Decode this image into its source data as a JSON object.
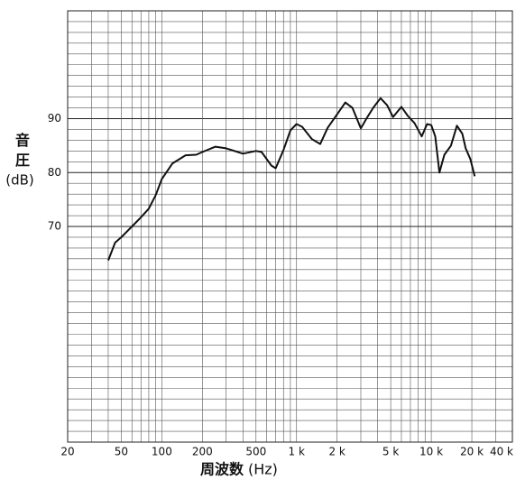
{
  "chart_data": {
    "type": "line",
    "ylabel": "音圧",
    "ylabel_unit": "(dB)",
    "xlabel": "周波数",
    "xlabel_unit": "(Hz)",
    "log_x": true,
    "grid": true,
    "color": "#111111",
    "xlim": [
      20,
      40000
    ],
    "ylim": [
      30,
      110
    ],
    "xticks": [
      20,
      50,
      100,
      200,
      500,
      {
        "value": 1000,
        "label": "1 k"
      },
      {
        "value": 2000,
        "label": "2 k"
      },
      {
        "value": 5000,
        "label": "5 k"
      },
      {
        "value": 10000,
        "label": "10 k"
      },
      {
        "value": 20000,
        "label": "20 k"
      },
      {
        "value": 40000,
        "label": "40 k"
      }
    ],
    "xminor": [
      30,
      40,
      60,
      70,
      80,
      90,
      300,
      400,
      600,
      700,
      800,
      900,
      3000,
      4000,
      6000,
      7000,
      8000,
      9000,
      30000
    ],
    "yticks": [
      70,
      80,
      90
    ],
    "yminor": [
      32,
      34,
      36,
      38,
      40,
      42,
      44,
      46,
      48,
      50,
      52,
      54,
      56,
      58,
      60,
      62,
      64,
      66,
      68,
      72,
      74,
      76,
      78,
      82,
      84,
      86,
      88,
      92,
      94,
      96,
      98,
      100,
      102,
      104,
      106,
      108
    ],
    "x": [
      40,
      45,
      50,
      60,
      70,
      80,
      90,
      100,
      120,
      150,
      180,
      200,
      250,
      300,
      400,
      500,
      550,
      650,
      700,
      800,
      900,
      1000,
      1100,
      1300,
      1500,
      1700,
      2000,
      2300,
      2600,
      3000,
      3300,
      3700,
      4200,
      4700,
      5200,
      6000,
      6700,
      7500,
      8500,
      9300,
      10000,
      10700,
      11500,
      12500,
      14000,
      15500,
      17000,
      18000,
      19500,
      21000
    ],
    "values": [
      63.7,
      67,
      68,
      70,
      71.7,
      73.3,
      75.8,
      78.8,
      81.7,
      83.2,
      83.3,
      83.8,
      84.8,
      84.5,
      83.5,
      84,
      83.8,
      81.3,
      80.8,
      84.2,
      87.8,
      89,
      88.5,
      86.2,
      85.3,
      88.3,
      90.8,
      93,
      92,
      88.2,
      90,
      92,
      93.8,
      92.5,
      90.3,
      92.2,
      90.5,
      89.2,
      86.7,
      89,
      88.8,
      86.7,
      80,
      83.3,
      85,
      88.7,
      87.2,
      84.5,
      82.5,
      79.3
    ]
  }
}
